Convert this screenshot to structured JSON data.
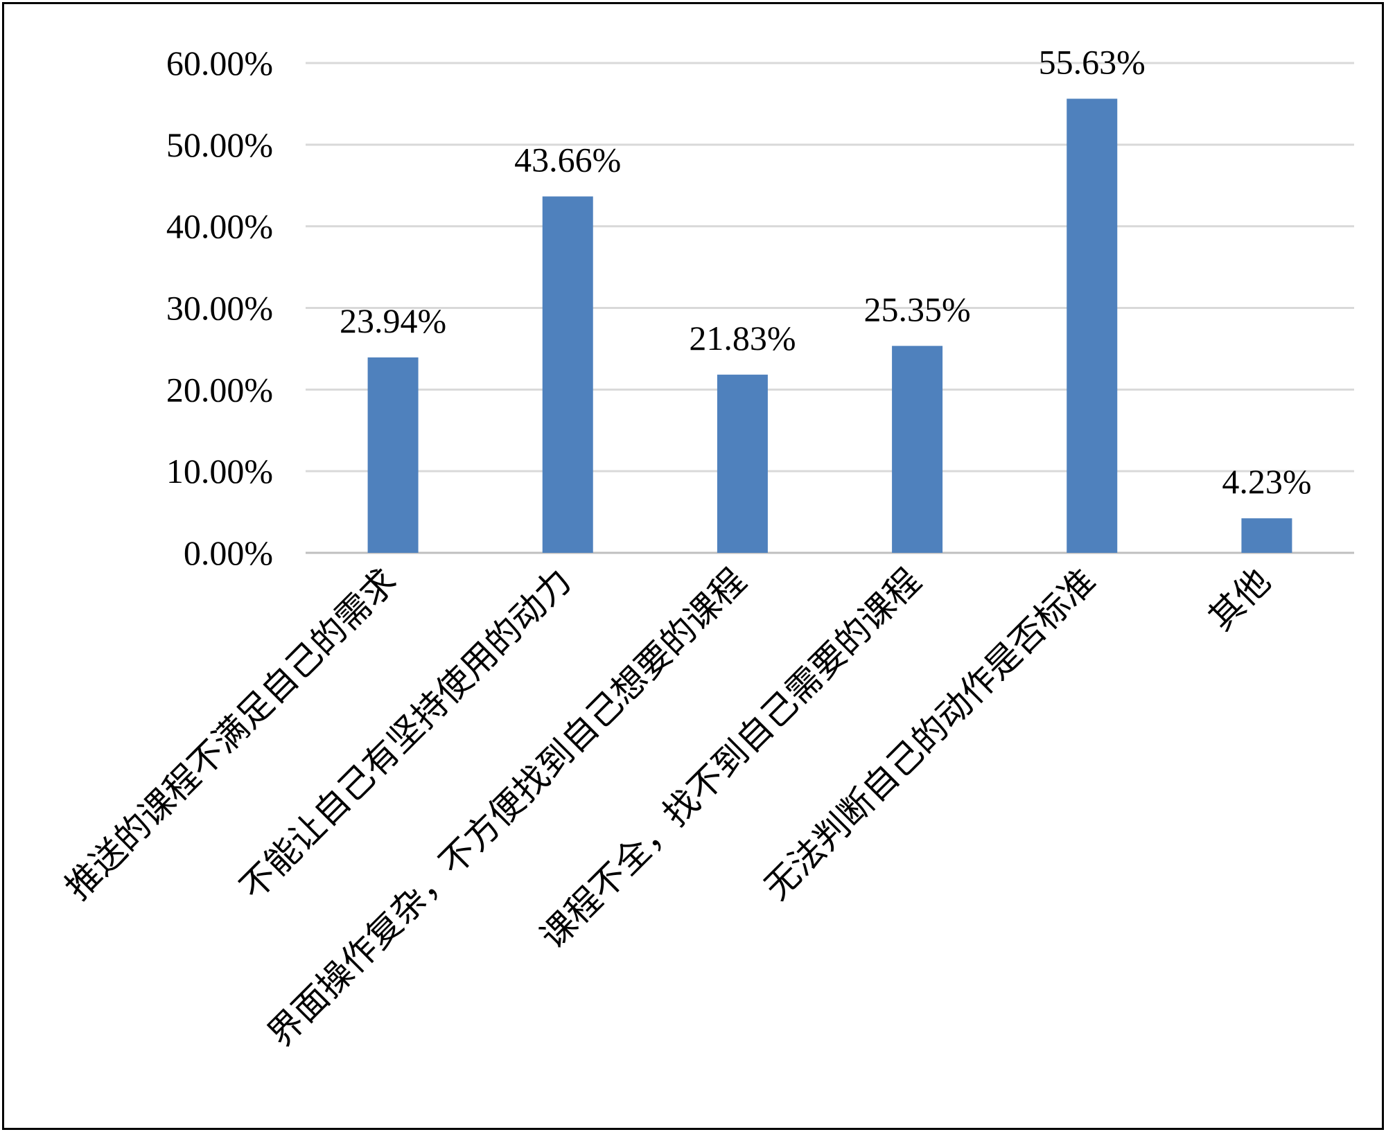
{
  "chart_data": {
    "type": "bar",
    "title": "",
    "xlabel": "",
    "ylabel": "",
    "categories": [
      "推送的课程不满足自己的需求",
      "不能让自己有坚持使用的动力",
      "界面操作复杂，不方便找到自己想要的课程",
      "课程不全，找不到自己需要的课程",
      "无法判断自己的动作是否标准",
      "其他"
    ],
    "values": [
      23.94,
      43.66,
      21.83,
      25.35,
      55.63,
      4.23
    ],
    "value_labels": [
      "23.94%",
      "43.66%",
      "21.83%",
      "25.35%",
      "55.63%",
      "4.23%"
    ],
    "ylim": [
      0,
      60
    ],
    "yticks": [
      0,
      10,
      20,
      30,
      40,
      50,
      60
    ],
    "ytick_labels": [
      "0.00%",
      "10.00%",
      "20.00%",
      "30.00%",
      "40.00%",
      "50.00%",
      "60.00%"
    ],
    "grid": true,
    "legend": "none",
    "bar_color": "#4f81bd",
    "grid_color": "#d9d9d9"
  }
}
